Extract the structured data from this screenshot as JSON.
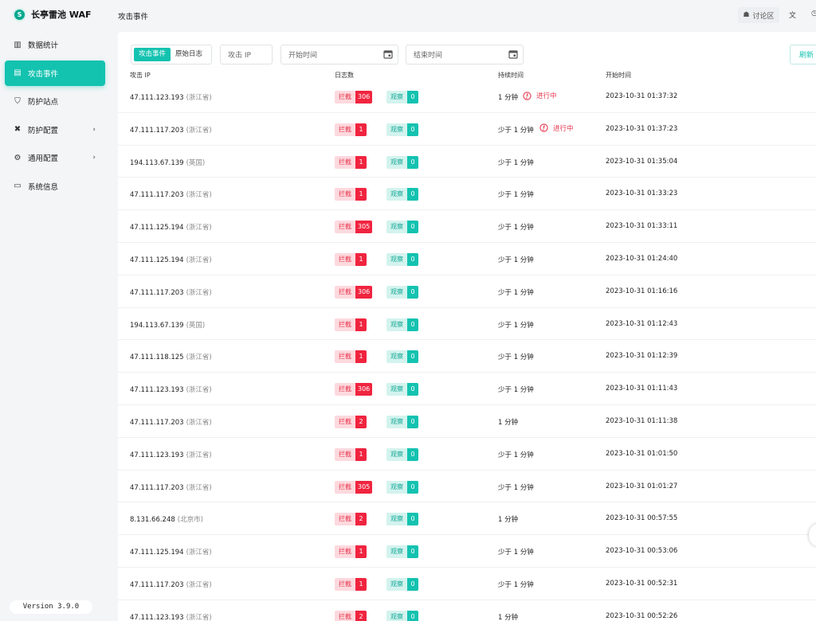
{
  "app": {
    "name": "长亭雷池 WAF",
    "logo_glyph": "S"
  },
  "sidebar": {
    "items": [
      {
        "label": "数据统计",
        "icon": "bar-chart-icon",
        "glyph": "▥",
        "active": false,
        "chevron": ""
      },
      {
        "label": "攻击事件",
        "icon": "document-icon",
        "glyph": "▤",
        "active": true,
        "chevron": ""
      },
      {
        "label": "防护站点",
        "icon": "shield-icon",
        "glyph": "⛉",
        "active": false,
        "chevron": ""
      },
      {
        "label": "防护配置",
        "icon": "tools-icon",
        "glyph": "✖",
        "active": false,
        "chevron": "›"
      },
      {
        "label": "通用配置",
        "icon": "gear-icon",
        "glyph": "⚙",
        "active": false,
        "chevron": "›"
      },
      {
        "label": "系统信息",
        "icon": "monitor-icon",
        "glyph": "▭",
        "active": false,
        "chevron": ""
      }
    ],
    "version": "Version 3.9.0"
  },
  "topbar": {
    "title": "攻击事件",
    "forum_label": "讨论区",
    "lang_glyph": "文",
    "extra_glyph": "◷"
  },
  "filters": {
    "segments": [
      {
        "label": "攻击事件",
        "on": true
      },
      {
        "label": "原始日志",
        "on": false
      }
    ],
    "ip_placeholder": "攻击 IP",
    "start_placeholder": "开始时间",
    "end_placeholder": "结束时间",
    "refresh_label": "刷新"
  },
  "table": {
    "headers": {
      "ip": "攻击 IP",
      "logs": "日志数",
      "duration": "持续时间",
      "start": "开始时间"
    },
    "block_label": "拦截",
    "watch_label": "观察",
    "ongoing_label": "进行中",
    "colors": {
      "accent": "#14c2b0",
      "danger": "#f0243f"
    },
    "rows": [
      {
        "ip": "47.111.123.193",
        "loc": "(浙江省)",
        "block": "306",
        "watch": "0",
        "dur": "1 分钟",
        "ongoing": true,
        "start": "2023-10-31 01:37:32"
      },
      {
        "ip": "47.111.117.203",
        "loc": "(浙江省)",
        "block": "1",
        "watch": "0",
        "dur": "少于 1 分钟",
        "ongoing": true,
        "start": "2023-10-31 01:37:23"
      },
      {
        "ip": "194.113.67.139",
        "loc": "(英国)",
        "block": "1",
        "watch": "0",
        "dur": "少于 1 分钟",
        "ongoing": false,
        "start": "2023-10-31 01:35:04"
      },
      {
        "ip": "47.111.117.203",
        "loc": "(浙江省)",
        "block": "1",
        "watch": "0",
        "dur": "少于 1 分钟",
        "ongoing": false,
        "start": "2023-10-31 01:33:23"
      },
      {
        "ip": "47.111.125.194",
        "loc": "(浙江省)",
        "block": "305",
        "watch": "0",
        "dur": "少于 1 分钟",
        "ongoing": false,
        "start": "2023-10-31 01:33:11"
      },
      {
        "ip": "47.111.125.194",
        "loc": "(浙江省)",
        "block": "1",
        "watch": "0",
        "dur": "少于 1 分钟",
        "ongoing": false,
        "start": "2023-10-31 01:24:40"
      },
      {
        "ip": "47.111.117.203",
        "loc": "(浙江省)",
        "block": "306",
        "watch": "0",
        "dur": "少于 1 分钟",
        "ongoing": false,
        "start": "2023-10-31 01:16:16"
      },
      {
        "ip": "194.113.67.139",
        "loc": "(英国)",
        "block": "1",
        "watch": "0",
        "dur": "少于 1 分钟",
        "ongoing": false,
        "start": "2023-10-31 01:12:43"
      },
      {
        "ip": "47.111.118.125",
        "loc": "(浙江省)",
        "block": "1",
        "watch": "0",
        "dur": "少于 1 分钟",
        "ongoing": false,
        "start": "2023-10-31 01:12:39"
      },
      {
        "ip": "47.111.123.193",
        "loc": "(浙江省)",
        "block": "306",
        "watch": "0",
        "dur": "少于 1 分钟",
        "ongoing": false,
        "start": "2023-10-31 01:11:43"
      },
      {
        "ip": "47.111.117.203",
        "loc": "(浙江省)",
        "block": "2",
        "watch": "0",
        "dur": "1 分钟",
        "ongoing": false,
        "start": "2023-10-31 01:11:38"
      },
      {
        "ip": "47.111.123.193",
        "loc": "(浙江省)",
        "block": "1",
        "watch": "0",
        "dur": "少于 1 分钟",
        "ongoing": false,
        "start": "2023-10-31 01:01:50"
      },
      {
        "ip": "47.111.117.203",
        "loc": "(浙江省)",
        "block": "305",
        "watch": "0",
        "dur": "少于 1 分钟",
        "ongoing": false,
        "start": "2023-10-31 01:01:27"
      },
      {
        "ip": "8.131.66.248",
        "loc": "(北京市)",
        "block": "2",
        "watch": "0",
        "dur": "1 分钟",
        "ongoing": false,
        "start": "2023-10-31 00:57:55"
      },
      {
        "ip": "47.111.125.194",
        "loc": "(浙江省)",
        "block": "1",
        "watch": "0",
        "dur": "少于 1 分钟",
        "ongoing": false,
        "start": "2023-10-31 00:53:06"
      },
      {
        "ip": "47.111.117.203",
        "loc": "(浙江省)",
        "block": "1",
        "watch": "0",
        "dur": "少于 1 分钟",
        "ongoing": false,
        "start": "2023-10-31 00:52:31"
      },
      {
        "ip": "47.111.123.193",
        "loc": "(浙江省)",
        "block": "2",
        "watch": "0",
        "dur": "1 分钟",
        "ongoing": false,
        "start": "2023-10-31 00:52:26"
      }
    ]
  }
}
